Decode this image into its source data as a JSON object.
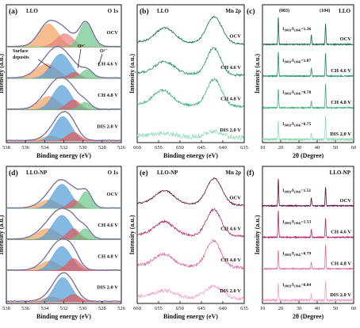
{
  "figure": {
    "panel_labels": [
      "(a)",
      "(b)",
      "(c)",
      "(d)",
      "(e)",
      "(f)"
    ]
  },
  "chart_data": [
    {
      "id": "a",
      "type": "line",
      "sample": "LLO",
      "region": "O 1s",
      "xlabel": "Binding energy (eV)",
      "ylabel": "Intensity (a.u.)",
      "x_ticks": [
        538,
        536,
        534,
        532,
        530,
        528,
        526
      ],
      "xlim": [
        538,
        526
      ],
      "annotations": [
        "Surface deposits",
        "Oⁿ⁻",
        "O²⁻"
      ],
      "series": [
        {
          "label": "OCV",
          "components": [
            {
              "center": 533.6,
              "height": 0.95,
              "width": 1.0,
              "color": "#f3a15f"
            },
            {
              "center": 531.9,
              "height": 0.55,
              "width": 0.9,
              "color": "#e8807a"
            },
            {
              "center": 529.7,
              "height": 1.0,
              "width": 0.7,
              "color": "#6cc48a"
            }
          ]
        },
        {
          "label": "CH 4.6 V",
          "components": [
            {
              "center": 533.8,
              "height": 0.6,
              "width": 1.1,
              "color": "#f3a15f"
            },
            {
              "center": 532.3,
              "height": 1.0,
              "width": 1.0,
              "color": "#4e9bd6"
            },
            {
              "center": 530.9,
              "height": 0.25,
              "width": 0.6,
              "color": "#e05a5a"
            },
            {
              "center": 529.6,
              "height": 0.35,
              "width": 0.6,
              "color": "#6cc48a"
            }
          ]
        },
        {
          "label": "CH 4.8 V",
          "components": [
            {
              "center": 533.6,
              "height": 0.55,
              "width": 1.0,
              "color": "#f3a15f"
            },
            {
              "center": 532.2,
              "height": 1.0,
              "width": 0.95,
              "color": "#4e9bd6"
            },
            {
              "center": 531.0,
              "height": 0.4,
              "width": 0.7,
              "color": "#e05a5a"
            },
            {
              "center": 529.8,
              "height": 0.3,
              "width": 0.6,
              "color": "#6cc48a"
            }
          ]
        },
        {
          "label": "DIS 2.0 V",
          "components": [
            {
              "center": 533.4,
              "height": 0.2,
              "width": 0.9,
              "color": "#f3a15f"
            },
            {
              "center": 532.1,
              "height": 1.0,
              "width": 0.9,
              "color": "#4e9bd6"
            },
            {
              "center": 531.0,
              "height": 0.35,
              "width": 0.7,
              "color": "#e05a5a"
            }
          ]
        }
      ]
    },
    {
      "id": "b",
      "type": "line",
      "sample": "LLO",
      "region": "Mn 2p",
      "xlabel": "Binding energy (eV)",
      "ylabel": "Intensity (a.u.)",
      "x_ticks": [
        660,
        655,
        650,
        645,
        640,
        635
      ],
      "xlim": [
        660,
        635
      ],
      "series": [
        {
          "label": "OCV",
          "color": "#0f6b45",
          "peaks": [
            [
              653.5,
              0.55,
              2.2
            ],
            [
              642.0,
              1.0,
              1.8
            ]
          ],
          "noise": 0.03
        },
        {
          "label": "CH 4.6 V",
          "color": "#229162",
          "peaks": [
            [
              653.6,
              0.45,
              2.3
            ],
            [
              642.1,
              1.0,
              1.6
            ]
          ],
          "noise": 0.045
        },
        {
          "label": "CH 4.8 V",
          "color": "#3fb07c",
          "peaks": [
            [
              654.0,
              0.55,
              2.2
            ],
            [
              642.0,
              1.0,
              1.7
            ]
          ],
          "noise": 0.05
        },
        {
          "label": "DIS 2.0 V",
          "color": "#8fdcb8",
          "peaks": [
            [
              653.5,
              0.12,
              2.5
            ],
            [
              642.0,
              0.22,
              2.0
            ]
          ],
          "noise": 0.09
        }
      ]
    },
    {
      "id": "c",
      "type": "line",
      "sample": "LLO",
      "xlabel": "2θ (Degree)",
      "ylabel": "Intensity (a.u.)",
      "x_ticks": [
        10,
        20,
        30,
        40,
        50,
        60
      ],
      "xlim": [
        10,
        60
      ],
      "peak_labels": [
        "(003)",
        "(104)"
      ],
      "series": [
        {
          "label": "OCV",
          "color": "#0f6b45",
          "ratio_label": "I(003)/I(104)=1.36",
          "peaks": [
            [
              18.7,
              1.0
            ],
            [
              36.8,
              0.35
            ],
            [
              44.6,
              0.75
            ]
          ]
        },
        {
          "label": "CH 4.6 V",
          "color": "#229162",
          "ratio_label": "I(003)/I(104)=1.07",
          "peaks": [
            [
              18.7,
              0.9
            ],
            [
              36.8,
              0.3
            ],
            [
              44.6,
              0.85
            ]
          ]
        },
        {
          "label": "CH 4.8 V",
          "color": "#3fb07c",
          "ratio_label": "I(003)/I(104)=0.78",
          "peaks": [
            [
              18.7,
              0.7
            ],
            [
              36.8,
              0.25
            ],
            [
              44.6,
              0.9
            ]
          ]
        },
        {
          "label": "DIS 2.0 V",
          "color": "#8fdcb8",
          "ratio_label": "I(003)/I(104)=0.75",
          "peaks": [
            [
              18.7,
              0.65
            ],
            [
              36.8,
              0.25
            ],
            [
              44.6,
              0.85
            ]
          ]
        }
      ]
    },
    {
      "id": "d",
      "type": "line",
      "sample": "LLO-NP",
      "region": "O 1s",
      "xlabel": "Binding energy (eV)",
      "ylabel": "Intensity (a.u.)",
      "x_ticks": [
        538,
        536,
        534,
        532,
        530,
        528,
        526
      ],
      "xlim": [
        538,
        526
      ],
      "series": [
        {
          "label": "OCV",
          "components": [
            {
              "center": 533.6,
              "height": 0.35,
              "width": 1.0,
              "color": "#f3a15f"
            },
            {
              "center": 532.2,
              "height": 1.0,
              "width": 0.95,
              "color": "#4e9bd6"
            },
            {
              "center": 530.9,
              "height": 0.35,
              "width": 0.6,
              "color": "#e05a5a"
            },
            {
              "center": 529.7,
              "height": 0.7,
              "width": 0.6,
              "color": "#6cc48a"
            }
          ]
        },
        {
          "label": "CH 4.6 V",
          "components": [
            {
              "center": 533.7,
              "height": 0.45,
              "width": 1.1,
              "color": "#f3a15f"
            },
            {
              "center": 532.2,
              "height": 1.0,
              "width": 1.0,
              "color": "#4e9bd6"
            },
            {
              "center": 531.0,
              "height": 0.45,
              "width": 0.65,
              "color": "#e05a5a"
            },
            {
              "center": 529.8,
              "height": 0.45,
              "width": 0.6,
              "color": "#6cc48a"
            }
          ]
        },
        {
          "label": "CH 4.8 V",
          "components": [
            {
              "center": 533.5,
              "height": 0.4,
              "width": 1.0,
              "color": "#f3a15f"
            },
            {
              "center": 532.2,
              "height": 1.0,
              "width": 0.95,
              "color": "#4e9bd6"
            },
            {
              "center": 531.0,
              "height": 0.5,
              "width": 0.7,
              "color": "#e05a5a"
            }
          ]
        },
        {
          "label": "DIS 2.0 V",
          "components": [
            {
              "center": 533.3,
              "height": 0.2,
              "width": 0.9,
              "color": "#f3a15f"
            },
            {
              "center": 532.1,
              "height": 1.0,
              "width": 0.9,
              "color": "#4e9bd6"
            },
            {
              "center": 531.0,
              "height": 0.3,
              "width": 0.7,
              "color": "#e05a5a"
            }
          ]
        }
      ]
    },
    {
      "id": "e",
      "type": "line",
      "sample": "LLO-NP",
      "region": "Mn 2p",
      "xlabel": "Binding energy (eV)",
      "ylabel": "Intensity (a.u.)",
      "x_ticks": [
        660,
        655,
        650,
        645,
        640,
        635
      ],
      "xlim": [
        660,
        635
      ],
      "series": [
        {
          "label": "OCV",
          "color": "#5e1034",
          "peaks": [
            [
              653.6,
              0.5,
              2.2
            ],
            [
              642.0,
              1.0,
              1.8
            ]
          ],
          "noise": 0.03
        },
        {
          "label": "CH 4.6 V",
          "color": "#b32a6c",
          "peaks": [
            [
              653.7,
              0.5,
              2.2
            ],
            [
              642.1,
              1.0,
              1.7
            ]
          ],
          "noise": 0.045
        },
        {
          "label": "CH 4.8 V",
          "color": "#dc6fa3",
          "peaks": [
            [
              653.8,
              0.45,
              2.2
            ],
            [
              642.2,
              1.0,
              1.7
            ]
          ],
          "noise": 0.06
        },
        {
          "label": "DIS 2.0 V",
          "color": "#eea5c8",
          "peaks": [
            [
              653.5,
              0.25,
              2.4
            ],
            [
              642.0,
              0.45,
              2.0
            ]
          ],
          "noise": 0.07
        }
      ]
    },
    {
      "id": "f",
      "type": "line",
      "sample": "LLO-NP",
      "xlabel": "2θ (Degree)",
      "ylabel": "Intensity (a.u.)",
      "x_ticks": [
        10,
        20,
        30,
        40,
        50,
        60
      ],
      "xlim": [
        10,
        60
      ],
      "series": [
        {
          "label": "OCV",
          "color": "#5e1034",
          "ratio_label": "I(003)/I(104)=1.51",
          "peaks": [
            [
              18.7,
              1.0
            ],
            [
              36.8,
              0.3
            ],
            [
              44.6,
              0.7
            ]
          ]
        },
        {
          "label": "CH 4.6 V",
          "color": "#b32a6c",
          "ratio_label": "I(003)/I(104)=1.53",
          "peaks": [
            [
              18.7,
              1.0
            ],
            [
              36.8,
              0.3
            ],
            [
              44.6,
              0.7
            ]
          ]
        },
        {
          "label": "CH 4.8 V",
          "color": "#dc6fa3",
          "ratio_label": "I(003)/I(104)=0.79",
          "peaks": [
            [
              18.7,
              0.7
            ],
            [
              36.8,
              0.25
            ],
            [
              44.6,
              0.9
            ]
          ]
        },
        {
          "label": "DIS 2.0 V",
          "color": "#eea5c8",
          "ratio_label": "I(003)/I(104)=0.84",
          "peaks": [
            [
              18.7,
              0.6
            ],
            [
              36.8,
              0.25
            ],
            [
              44.6,
              0.75
            ]
          ]
        }
      ]
    }
  ]
}
